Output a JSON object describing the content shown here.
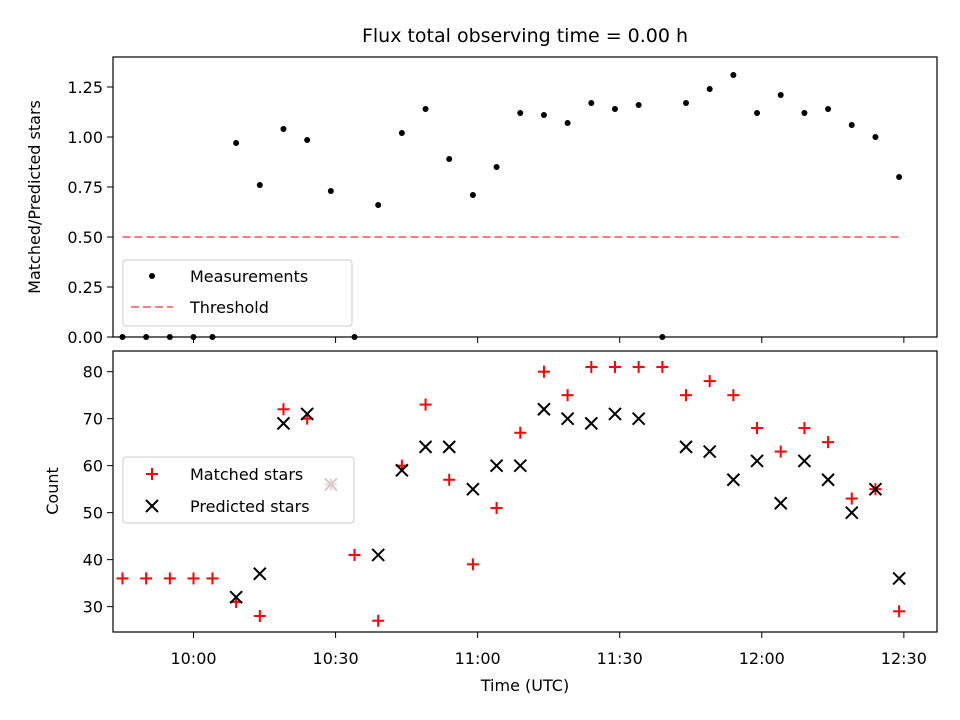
{
  "chart_data": [
    {
      "type": "scatter",
      "title": "Flux total observing time = 0.00 h",
      "xlabel": "",
      "ylabel": "Matched/Predicted stars",
      "ylim": [
        0,
        1.4
      ],
      "xlim": [
        "09:43",
        "12:37"
      ],
      "yticks": [
        "0.00",
        "0.25",
        "0.50",
        "0.75",
        "1.00",
        "1.25"
      ],
      "legend_position": "lower-left",
      "grid": false,
      "series": [
        {
          "name": "Measurements",
          "marker": "dot",
          "color": "#000000",
          "points": [
            [
              "09:45",
              0.0
            ],
            [
              "09:50",
              0.0
            ],
            [
              "09:55",
              0.0
            ],
            [
              "10:00",
              0.0
            ],
            [
              "10:04",
              0.0
            ],
            [
              "10:09",
              0.97
            ],
            [
              "10:14",
              0.76
            ],
            [
              "10:19",
              1.04
            ],
            [
              "10:24",
              0.985
            ],
            [
              "10:29",
              0.73
            ],
            [
              "10:34",
              0.0
            ],
            [
              "10:39",
              0.66
            ],
            [
              "10:44",
              1.02
            ],
            [
              "10:49",
              1.14
            ],
            [
              "10:54",
              0.89
            ],
            [
              "10:59",
              0.71
            ],
            [
              "11:04",
              0.85
            ],
            [
              "11:09",
              1.12
            ],
            [
              "11:14",
              1.11
            ],
            [
              "11:19",
              1.07
            ],
            [
              "11:24",
              1.17
            ],
            [
              "11:29",
              1.14
            ],
            [
              "11:34",
              1.16
            ],
            [
              "11:39",
              0.0
            ],
            [
              "11:44",
              1.17
            ],
            [
              "11:49",
              1.24
            ],
            [
              "11:54",
              1.31
            ],
            [
              "11:59",
              1.12
            ],
            [
              "12:04",
              1.21
            ],
            [
              "12:09",
              1.12
            ],
            [
              "12:14",
              1.14
            ],
            [
              "12:19",
              1.06
            ],
            [
              "12:24",
              1.0
            ],
            [
              "12:29",
              0.8
            ]
          ]
        },
        {
          "name": "Threshold",
          "marker": "dashed-line",
          "color": "#ff7f7f",
          "points": [
            [
              "09:45",
              0.5
            ],
            [
              "12:29",
              0.5
            ]
          ]
        }
      ]
    },
    {
      "type": "scatter",
      "title": "",
      "xlabel": "Time (UTC)",
      "ylabel": "Count",
      "ylim": [
        24.6,
        84.4
      ],
      "xlim": [
        "09:43",
        "12:37"
      ],
      "xticks": [
        "10:00",
        "10:30",
        "11:00",
        "11:30",
        "12:00",
        "12:30"
      ],
      "yticks": [
        "30",
        "40",
        "50",
        "60",
        "70",
        "80"
      ],
      "legend_position": "center-left",
      "grid": false,
      "series": [
        {
          "name": "Matched stars",
          "marker": "plus",
          "color": "#ff0000",
          "points": [
            [
              "09:45",
              36
            ],
            [
              "09:50",
              36
            ],
            [
              "09:55",
              36
            ],
            [
              "10:00",
              36
            ],
            [
              "10:04",
              36
            ],
            [
              "10:09",
              31
            ],
            [
              "10:14",
              28
            ],
            [
              "10:19",
              72
            ],
            [
              "10:24",
              70
            ],
            [
              "10:29",
              56
            ],
            [
              "10:34",
              41
            ],
            [
              "10:34",
              41
            ],
            [
              "10:39",
              27
            ],
            [
              "10:44",
              60
            ],
            [
              "10:49",
              73
            ],
            [
              "10:54",
              57
            ],
            [
              "10:59",
              39
            ],
            [
              "11:04",
              51
            ],
            [
              "11:09",
              67
            ],
            [
              "11:14",
              80
            ],
            [
              "11:19",
              75
            ],
            [
              "11:24",
              81
            ],
            [
              "11:29",
              81
            ],
            [
              "11:34",
              81
            ],
            [
              "11:39",
              81
            ],
            [
              "11:44",
              75
            ],
            [
              "11:49",
              78
            ],
            [
              "11:54",
              75
            ],
            [
              "11:59",
              68
            ],
            [
              "12:04",
              63
            ],
            [
              "12:09",
              68
            ],
            [
              "12:14",
              65
            ],
            [
              "12:19",
              53
            ],
            [
              "12:24",
              55
            ],
            [
              "12:29",
              29
            ]
          ]
        },
        {
          "name": "Predicted stars",
          "marker": "x",
          "color": "#000000",
          "points": [
            [
              "10:09",
              32
            ],
            [
              "10:14",
              37
            ],
            [
              "10:19",
              69
            ],
            [
              "10:24",
              71
            ],
            [
              "10:29",
              56
            ],
            [
              "10:39",
              41
            ],
            [
              "10:44",
              59
            ],
            [
              "10:49",
              64
            ],
            [
              "10:54",
              64
            ],
            [
              "10:59",
              55
            ],
            [
              "11:04",
              60
            ],
            [
              "11:09",
              60
            ],
            [
              "11:14",
              72
            ],
            [
              "11:19",
              70
            ],
            [
              "11:24",
              69
            ],
            [
              "11:29",
              71
            ],
            [
              "11:34",
              70
            ],
            [
              "11:44",
              64
            ],
            [
              "11:49",
              63
            ],
            [
              "11:54",
              57
            ],
            [
              "11:59",
              61
            ],
            [
              "12:04",
              52
            ],
            [
              "12:09",
              61
            ],
            [
              "12:14",
              57
            ],
            [
              "12:19",
              50
            ],
            [
              "12:24",
              55
            ],
            [
              "12:29",
              36
            ]
          ]
        }
      ]
    }
  ]
}
